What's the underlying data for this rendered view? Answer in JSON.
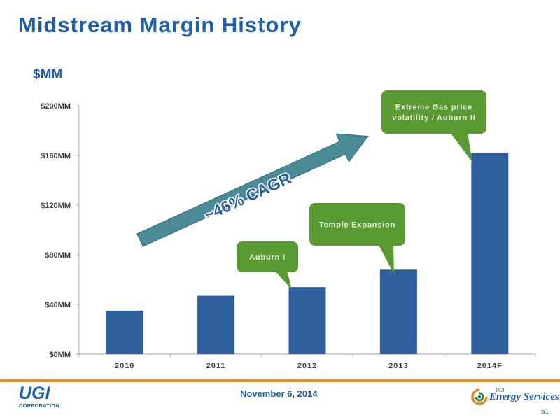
{
  "slide": {
    "title": "Midstream Margin History",
    "unit_label": "$MM"
  },
  "chart_data": {
    "type": "bar",
    "categories": [
      "2010",
      "2011",
      "2012",
      "2013",
      "2014F"
    ],
    "values": [
      35,
      47,
      54,
      68,
      162
    ],
    "ylim": [
      0,
      200
    ],
    "yticks": [
      0,
      40,
      80,
      120,
      160,
      200
    ],
    "ytick_labels": [
      "$0MM",
      "$40MM",
      "$80MM",
      "$120MM",
      "$160MM",
      "$200MM"
    ],
    "bar_color": "#2e5f9c",
    "grid": false,
    "annotations": [
      {
        "text": "~46% CAGR",
        "kind": "arrow",
        "color": "#4b8a97"
      },
      {
        "text": "Auburn I",
        "kind": "callout",
        "target": "2012",
        "color": "#5a9a32"
      },
      {
        "text": "Temple Expansion",
        "kind": "callout",
        "target": "2013",
        "color": "#5a9a32"
      },
      {
        "text": "Extreme Gas price volatility / Auburn II",
        "kind": "callout",
        "target": "2014F",
        "color": "#5a9a32"
      }
    ]
  },
  "footer": {
    "logo_left_main": "UGI",
    "logo_left_sub": "CORPORATION",
    "date": "November 6, 2014",
    "logo_right_small": "UGI",
    "logo_right_text": "Energy Services",
    "page_number": "51",
    "accent_color": "#e8892a"
  }
}
